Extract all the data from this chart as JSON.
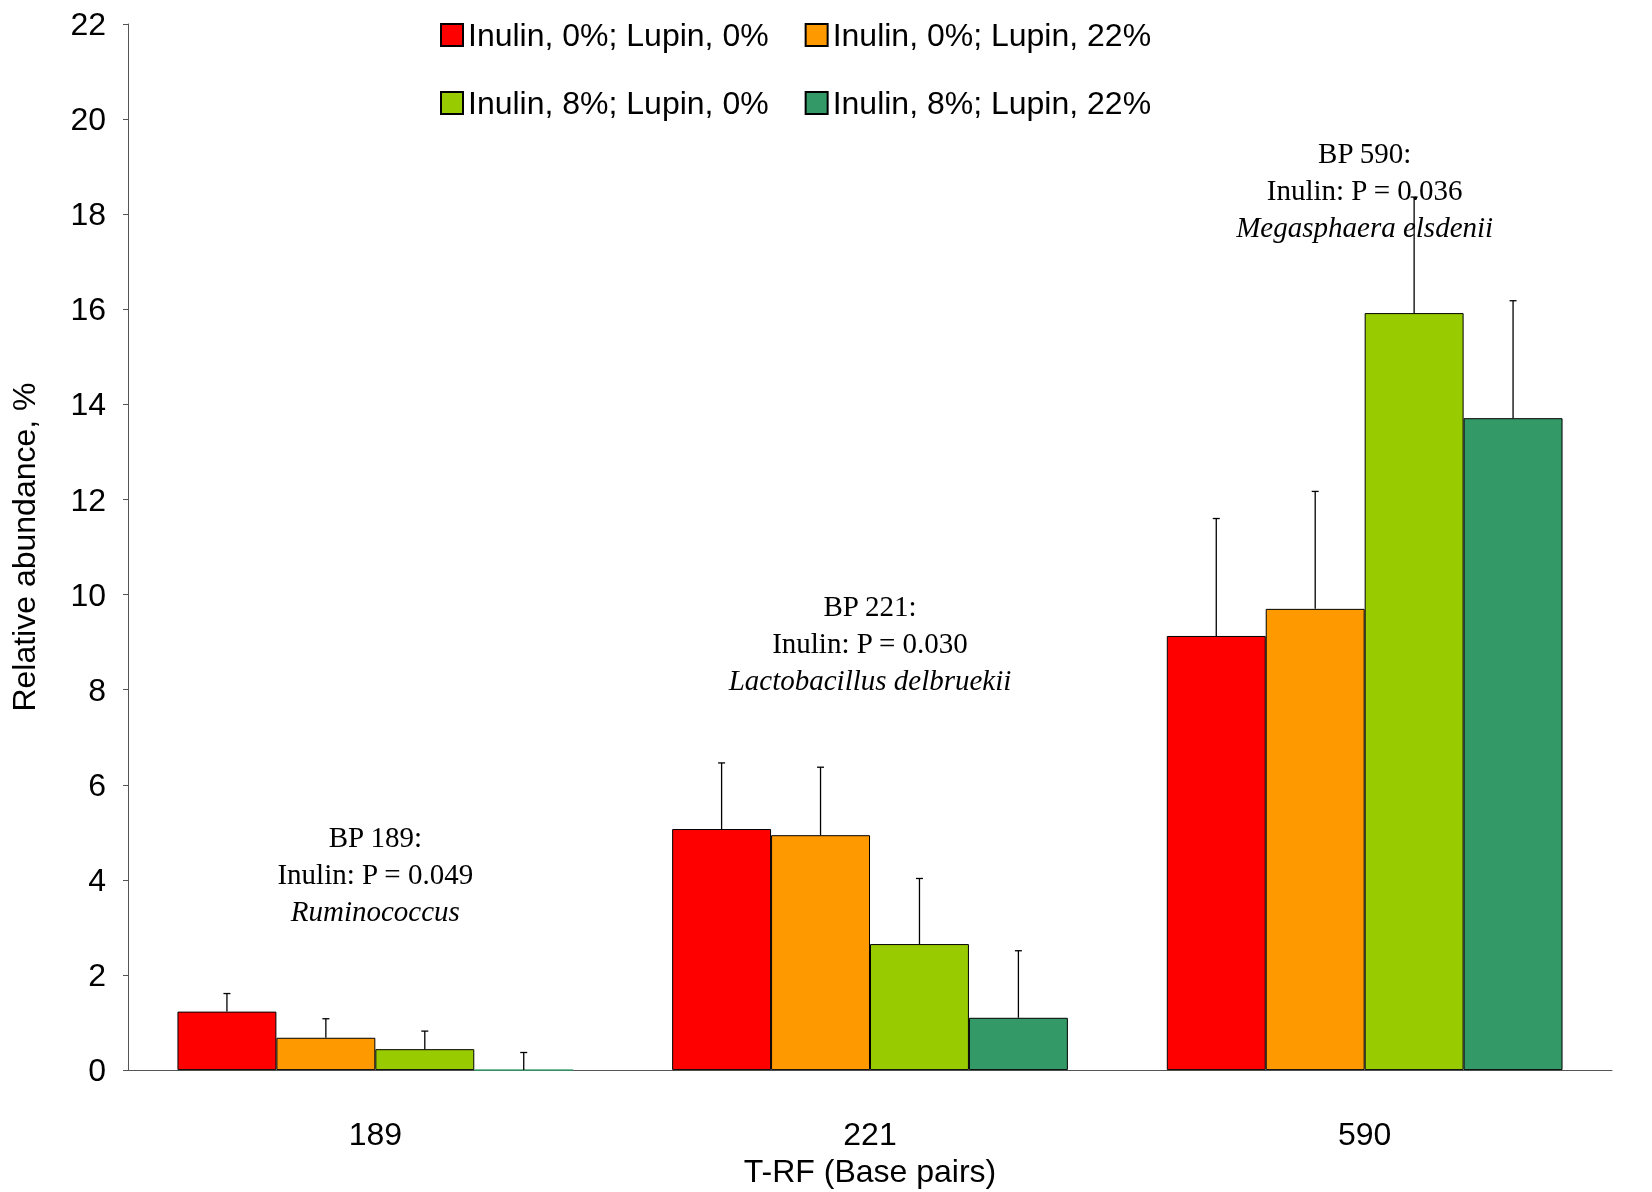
{
  "chart_data": {
    "type": "bar",
    "xlabel": "T-RF (Base pairs)",
    "ylabel": "Relative abundance, %",
    "categories": [
      "189",
      "221",
      "590"
    ],
    "series": [
      {
        "name": "Inulin, 0%; Lupin, 0%",
        "color": "#ff0000",
        "values": [
          1.23,
          5.07,
          9.13
        ],
        "errors": [
          [
            1.23,
            1.61
          ],
          [
            5.07,
            6.46
          ],
          [
            9.13,
            11.6
          ]
        ]
      },
      {
        "name": "Inulin, 0%; Lupin, 22%",
        "color": "#ff9900",
        "values": [
          0.68,
          4.94,
          9.7
        ],
        "errors": [
          [
            0.68,
            1.08
          ],
          [
            4.94,
            6.37
          ],
          [
            9.7,
            12.17
          ]
        ]
      },
      {
        "name": "Inulin, 8%; Lupin, 0%",
        "color": "#99cc00",
        "values": [
          0.44,
          2.65,
          15.92
        ],
        "errors": [
          [
            0.44,
            0.82
          ],
          [
            2.65,
            4.03
          ],
          [
            15.92,
            18.36
          ]
        ]
      },
      {
        "name": "Inulin, 8%; Lupin, 22%",
        "color": "#339966",
        "values": [
          0,
          1.1,
          13.71
        ],
        "errors": [
          [
            0,
            0.37
          ],
          [
            1.1,
            2.51
          ],
          [
            13.71,
            16.18
          ]
        ]
      }
    ],
    "ylim": [
      0,
      22
    ],
    "yticks": [
      0,
      2,
      4,
      6,
      8,
      10,
      12,
      14,
      16,
      18,
      20,
      22
    ],
    "grid": false,
    "legend": "top",
    "annotations": [
      "BP 189:\nInulin: P = 0.049\nRuminococcus",
      "BP 221:\nInulin: P = 0.030\nLactobacillus delbruekii",
      "BP 590:\nInulin: P = 0.036\nMegasphaera elsdenii"
    ]
  }
}
